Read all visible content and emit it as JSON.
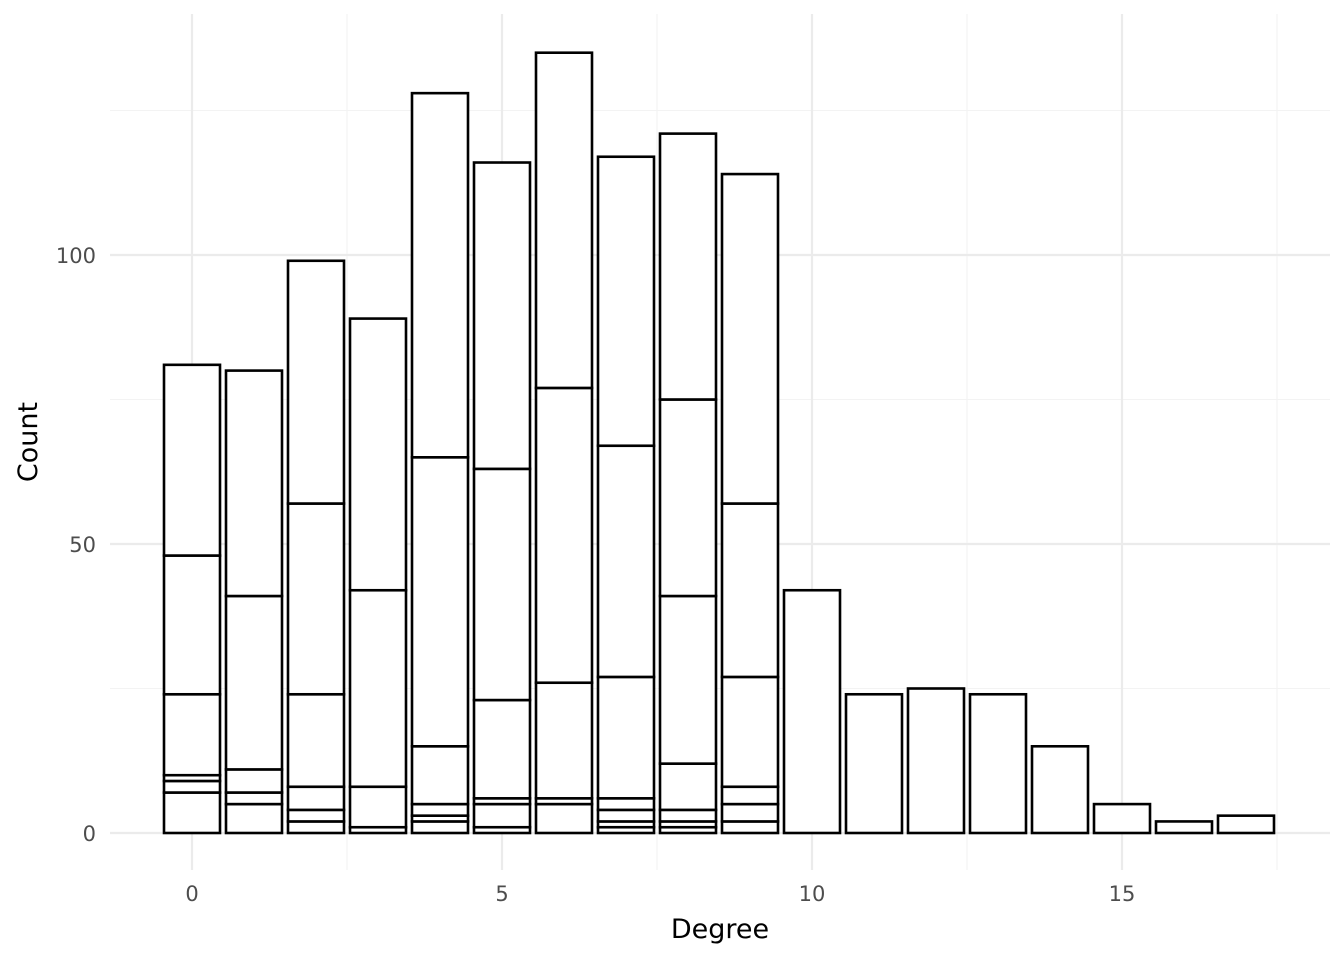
{
  "chart_data": {
    "type": "bar",
    "stacked": true,
    "xlabel": "Degree",
    "ylabel": "Count",
    "xlim": [
      -1.3,
      18.3
    ],
    "ylim": [
      -6,
      141
    ],
    "x_ticks": [
      0,
      5,
      10,
      15
    ],
    "x_tick_labels": [
      "0",
      "5",
      "10",
      "15"
    ],
    "y_ticks": [
      0,
      50,
      100
    ],
    "y_tick_labels": [
      "0",
      "50",
      "100"
    ],
    "grid": true,
    "legend": "none",
    "bars": [
      {
        "x": 0,
        "boundaries": [
          7,
          9,
          10,
          24,
          48,
          81
        ]
      },
      {
        "x": 1,
        "boundaries": [
          5,
          7,
          11,
          41,
          80
        ]
      },
      {
        "x": 2,
        "boundaries": [
          2,
          4,
          8,
          24,
          57,
          99
        ]
      },
      {
        "x": 3,
        "boundaries": [
          1,
          8,
          42,
          89
        ]
      },
      {
        "x": 4,
        "boundaries": [
          2,
          3,
          5,
          15,
          65,
          128
        ]
      },
      {
        "x": 5,
        "boundaries": [
          1,
          5,
          6,
          23,
          63,
          116
        ]
      },
      {
        "x": 6,
        "boundaries": [
          5,
          6,
          26,
          77,
          135
        ]
      },
      {
        "x": 7,
        "boundaries": [
          1,
          2,
          4,
          6,
          27,
          67,
          117
        ]
      },
      {
        "x": 8,
        "boundaries": [
          1,
          2,
          4,
          12,
          41,
          75,
          121
        ]
      },
      {
        "x": 9,
        "boundaries": [
          2,
          5,
          8,
          27,
          57,
          114
        ]
      },
      {
        "x": 10,
        "boundaries": [
          42
        ]
      },
      {
        "x": 11,
        "boundaries": [
          24
        ]
      },
      {
        "x": 12,
        "boundaries": [
          25
        ]
      },
      {
        "x": 13,
        "boundaries": [
          24
        ]
      },
      {
        "x": 14,
        "boundaries": [
          15
        ]
      },
      {
        "x": 15,
        "boundaries": [
          5
        ]
      },
      {
        "x": 16,
        "boundaries": [
          2
        ]
      },
      {
        "x": 17,
        "boundaries": [
          3
        ]
      }
    ]
  }
}
